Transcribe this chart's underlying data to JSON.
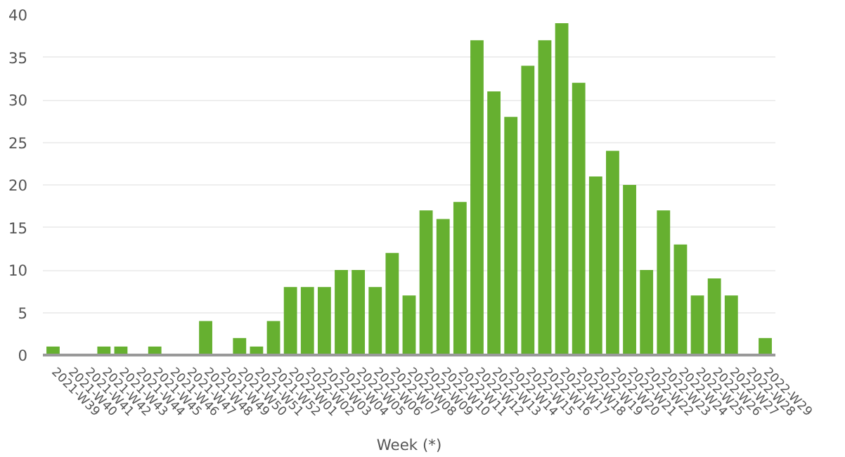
{
  "chart_data": {
    "type": "bar",
    "xlabel": "Week (*)",
    "categories": [
      "2021-W39",
      "2021-W40",
      "2021-W41",
      "2021-W42",
      "2021-W43",
      "2021-W44",
      "2021-W45",
      "2021-W46",
      "2021-W47",
      "2021-W48",
      "2021-W49",
      "2021-W50",
      "2021-W51",
      "2021-W52",
      "2022-W01",
      "2022-W02",
      "2022-W03",
      "2022-W04",
      "2022-W05",
      "2022-W06",
      "2022-W07",
      "2022-W08",
      "2022-W09",
      "2022-W10",
      "2022-W11",
      "2022-W12",
      "2022-W13",
      "2022-W14",
      "2022-W15",
      "2022-W16",
      "2022-W17",
      "2022-W18",
      "2022-W19",
      "2022-W20",
      "2022-W21",
      "2022-W22",
      "2022-W23",
      "2022-W24",
      "2022-W25",
      "2022-W26",
      "2022-W27",
      "2022-W28",
      "2022-W29"
    ],
    "values": [
      1,
      0,
      0,
      1,
      1,
      0,
      1,
      0,
      0,
      4,
      0,
      2,
      1,
      4,
      8,
      8,
      8,
      10,
      10,
      8,
      12,
      7,
      17,
      16,
      18,
      37,
      31,
      28,
      34,
      37,
      39,
      32,
      21,
      24,
      20,
      10,
      17,
      13,
      7,
      9,
      7,
      0,
      2
    ],
    "color": "#66b030",
    "ylim": [
      0,
      40
    ],
    "yticks": [
      0,
      5,
      10,
      15,
      20,
      25,
      30,
      35,
      40
    ],
    "grid": "y"
  }
}
